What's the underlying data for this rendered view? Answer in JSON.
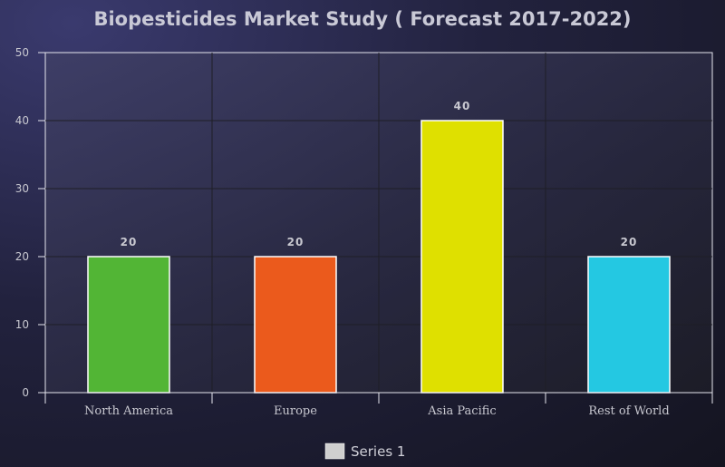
{
  "chart_data": {
    "type": "bar",
    "title": "Biopesticides Market Study ( Forecast 2017-2022)",
    "categories": [
      "North America",
      "Europe",
      "Asia Pacific",
      "Rest of World"
    ],
    "series": [
      {
        "name": "Series 1",
        "values": [
          20,
          20,
          40,
          20
        ]
      }
    ],
    "bar_colors": [
      "#52b535",
      "#eb5a1c",
      "#dfe000",
      "#24c8e2"
    ],
    "legend_color": "#cfcfcf",
    "ylim": [
      0,
      50
    ],
    "yticks": [
      0,
      10,
      20,
      30,
      40,
      50
    ],
    "grid": true,
    "legend_position": "bottom"
  }
}
